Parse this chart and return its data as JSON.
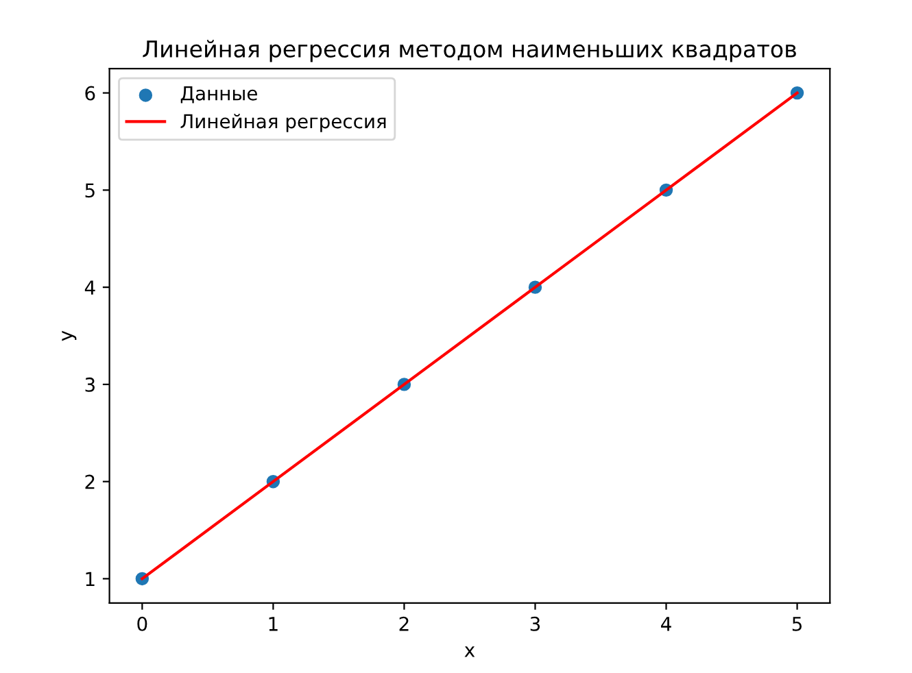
{
  "chart_data": {
    "type": "scatter",
    "title": "Линейная регрессия методом наименьших квадратов",
    "xlabel": "x",
    "ylabel": "y",
    "x": [
      0,
      1,
      2,
      3,
      4,
      5
    ],
    "series": [
      {
        "name": "Данные",
        "color": "#1f77b4",
        "marker": "circle",
        "values": [
          1,
          2,
          3,
          4,
          5,
          6
        ]
      },
      {
        "name": "Линейная регрессия",
        "type": "line",
        "marker": "none",
        "color": "#ff0000",
        "values": [
          1,
          2,
          3,
          4,
          5,
          6
        ]
      }
    ],
    "xlim": [
      -0.25,
      5.25
    ],
    "ylim": [
      0.75,
      6.25
    ],
    "xticks": [
      0,
      1,
      2,
      3,
      4,
      5
    ],
    "yticks": [
      1,
      2,
      3,
      4,
      5,
      6
    ],
    "legend": "top left",
    "grid": false
  }
}
